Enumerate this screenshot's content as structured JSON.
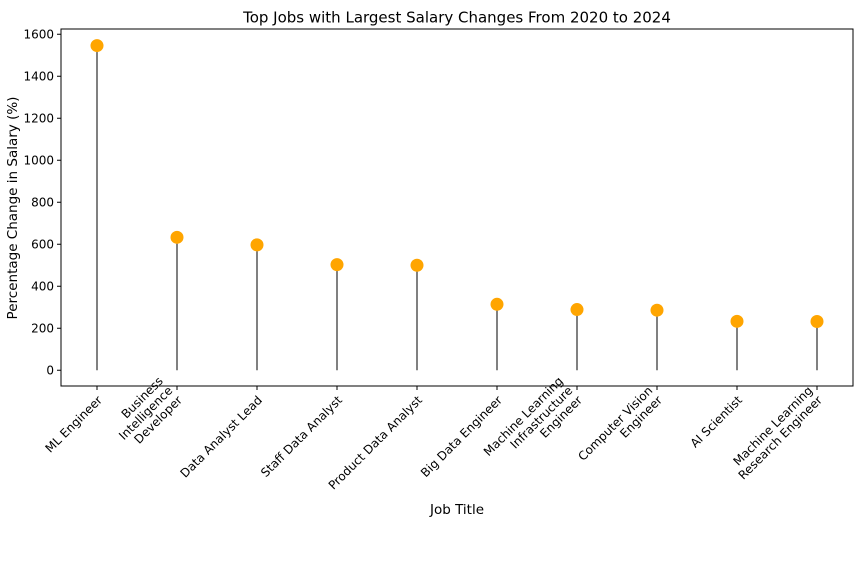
{
  "chart_data": {
    "type": "lollipop",
    "title": "Top Jobs with Largest Salary Changes From 2020 to 2024",
    "xlabel": "Job Title",
    "ylabel": "Percentage Change in Salary (%)",
    "categories": [
      "ML Engineer",
      "Business Intelligence Developer",
      "Data Analyst Lead",
      "Staff Data Analyst",
      "Product Data Analyst",
      "Big Data Engineer",
      "Machine Learning Infrastructure Engineer",
      "Computer Vision Engineer",
      "AI Scientist",
      "Machine Learning Research Engineer"
    ],
    "category_label_lines": [
      [
        "ML Engineer"
      ],
      [
        "Business",
        "Intelligence",
        "Developer"
      ],
      [
        "Data Analyst Lead"
      ],
      [
        "Staff Data Analyst"
      ],
      [
        "Product Data Analyst"
      ],
      [
        "Big Data Engineer"
      ],
      [
        "Machine Learning",
        "Infrastructure",
        "Engineer"
      ],
      [
        "Computer Vision",
        "Engineer"
      ],
      [
        "AI Scientist"
      ],
      [
        "Machine Learning",
        "Research Engineer"
      ]
    ],
    "values": [
      1546,
      633,
      597,
      503,
      500,
      314,
      289,
      286,
      233,
      232
    ],
    "ylim": [
      -75,
      1625
    ],
    "yticks": [
      0,
      200,
      400,
      600,
      800,
      1000,
      1200,
      1400,
      1600
    ],
    "grid": false,
    "colors": {
      "marker": "#FFA500",
      "stem": "#000000",
      "axes": "#000000"
    }
  }
}
